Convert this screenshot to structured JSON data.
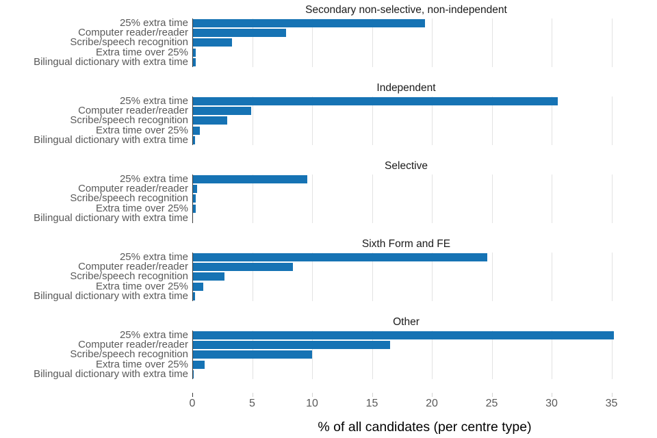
{
  "chart_data": {
    "type": "bar",
    "orientation": "horizontal",
    "xlabel": "% of all candidates (per centre type)",
    "x_ticks": [
      0,
      5,
      10,
      15,
      20,
      25,
      30,
      35
    ],
    "xlim": [
      0,
      35.7
    ],
    "grid": "vertical gridlines at each x tick, per panel",
    "legend": "none",
    "categories": [
      "25% extra time",
      "Computer reader/reader",
      "Scribe/speech recognition",
      "Extra time over 25%",
      "Bilingual dictionary with extra time"
    ],
    "panels": [
      {
        "title": "Secondary non-selective, non-independent",
        "values": [
          19.4,
          7.8,
          3.3,
          0.3,
          0.3
        ]
      },
      {
        "title": "Independent",
        "values": [
          30.5,
          4.9,
          2.9,
          0.6,
          0.2
        ]
      },
      {
        "title": "Selective",
        "values": [
          9.6,
          0.4,
          0.3,
          0.3,
          0.05
        ]
      },
      {
        "title": "Sixth Form and FE",
        "values": [
          24.6,
          8.4,
          2.7,
          0.9,
          0.2
        ]
      },
      {
        "title": "Other",
        "values": [
          35.2,
          16.5,
          10.0,
          1.0,
          0.1
        ]
      }
    ],
    "colors": {
      "bar": "#1673b4",
      "panel_title": "#1a1a1a",
      "category_label": "#595959",
      "tick_label": "#595959",
      "axis_label": "#000000",
      "gridline": "#e2e2e2",
      "axis_line": "#3a3a3a",
      "background": "#ffffff"
    }
  }
}
